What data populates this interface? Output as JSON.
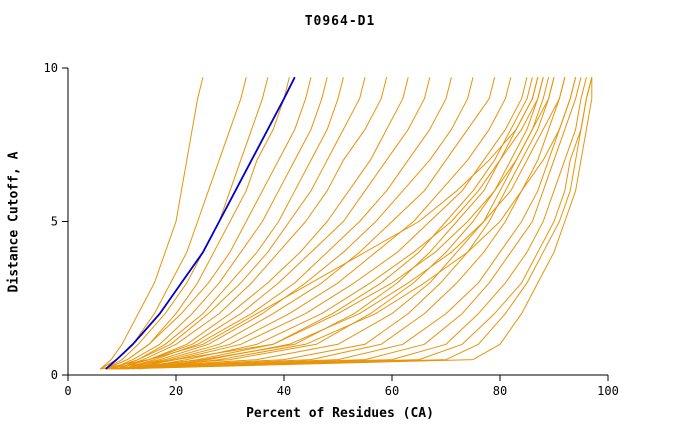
{
  "chart_data": {
    "type": "line",
    "title": "T0964-D1",
    "xlabel": "Percent of Residues (CA)",
    "ylabel": "Distance Cutoff, A",
    "xlim": [
      0,
      100
    ],
    "ylim": [
      0,
      10
    ],
    "x_ticks": [
      0,
      20,
      40,
      60,
      80,
      100
    ],
    "y_ticks": [
      0,
      5,
      10
    ],
    "grid": false,
    "legend": "none",
    "colors": {
      "models": "#e8940a",
      "highlight": "#0000cc",
      "axis": "#000000",
      "background": "#ffffff"
    },
    "y_samples": [
      0.2,
      0.5,
      1,
      2,
      3,
      4,
      5,
      6,
      7,
      8,
      9,
      9.7
    ],
    "model_series_x": [
      [
        6,
        8,
        10,
        13,
        16,
        18,
        20,
        21,
        22,
        23,
        24,
        25
      ],
      [
        6,
        9,
        12,
        16,
        19,
        22,
        24,
        26,
        28,
        30,
        32,
        33
      ],
      [
        7,
        10,
        13,
        18,
        22,
        25,
        28,
        30,
        32,
        34,
        36,
        37
      ],
      [
        7,
        11,
        15,
        20,
        24,
        27,
        30,
        33,
        35,
        38,
        40,
        41
      ],
      [
        7,
        11,
        15,
        21,
        26,
        30,
        33,
        36,
        39,
        42,
        44,
        45
      ],
      [
        8,
        12,
        17,
        23,
        28,
        32,
        36,
        39,
        42,
        45,
        47,
        48
      ],
      [
        8,
        13,
        18,
        25,
        30,
        35,
        39,
        42,
        45,
        48,
        50,
        51
      ],
      [
        8,
        13,
        19,
        26,
        32,
        37,
        41,
        45,
        48,
        51,
        54,
        55
      ],
      [
        9,
        14,
        20,
        28,
        34,
        39,
        44,
        48,
        51,
        55,
        58,
        59
      ],
      [
        9,
        15,
        22,
        30,
        37,
        43,
        48,
        52,
        56,
        59,
        62,
        63
      ],
      [
        9,
        15,
        23,
        32,
        39,
        45,
        51,
        55,
        59,
        63,
        66,
        67
      ],
      [
        10,
        16,
        24,
        34,
        42,
        48,
        54,
        59,
        63,
        67,
        70,
        71
      ],
      [
        10,
        17,
        26,
        36,
        44,
        51,
        57,
        62,
        67,
        71,
        74,
        75
      ],
      [
        10,
        18,
        28,
        38,
        47,
        54,
        60,
        66,
        70,
        74,
        78,
        79
      ],
      [
        11,
        19,
        30,
        41,
        50,
        57,
        64,
        69,
        74,
        78,
        81,
        82
      ],
      [
        11,
        20,
        32,
        44,
        53,
        61,
        67,
        73,
        77,
        81,
        84,
        85
      ],
      [
        12,
        22,
        35,
        47,
        56,
        64,
        71,
        76,
        80,
        84,
        87,
        88
      ],
      [
        12,
        24,
        38,
        50,
        60,
        68,
        74,
        79,
        83,
        86,
        89,
        90
      ],
      [
        13,
        26,
        41,
        54,
        63,
        71,
        77,
        82,
        85,
        88,
        91,
        92
      ],
      [
        13,
        28,
        44,
        57,
        66,
        74,
        80,
        84,
        88,
        91,
        93,
        94
      ],
      [
        7,
        40,
        55,
        63,
        69,
        74,
        78,
        81,
        84,
        87,
        89,
        90
      ],
      [
        7,
        45,
        58,
        66,
        72,
        77,
        81,
        84,
        87,
        89,
        91,
        92
      ],
      [
        8,
        50,
        62,
        70,
        76,
        80,
        84,
        87,
        89,
        91,
        93,
        94
      ],
      [
        8,
        55,
        66,
        73,
        78,
        82,
        86,
        88,
        90,
        92,
        94,
        95
      ],
      [
        8,
        60,
        70,
        76,
        81,
        85,
        88,
        90,
        92,
        94,
        95,
        96
      ],
      [
        9,
        65,
        73,
        79,
        84,
        87,
        90,
        92,
        93,
        95,
        96,
        97
      ],
      [
        9,
        70,
        76,
        81,
        85,
        88,
        91,
        93,
        94,
        95,
        96,
        97
      ],
      [
        10,
        75,
        80,
        84,
        87,
        90,
        92,
        94,
        95,
        96,
        97,
        97
      ],
      [
        7,
        35,
        50,
        60,
        67,
        72,
        77,
        80,
        83,
        86,
        88,
        89
      ],
      [
        7,
        30,
        46,
        56,
        64,
        70,
        75,
        79,
        82,
        85,
        87,
        88
      ],
      [
        8,
        25,
        42,
        53,
        61,
        67,
        72,
        77,
        80,
        83,
        86,
        87
      ],
      [
        6,
        20,
        38,
        49,
        58,
        65,
        70,
        75,
        79,
        82,
        85,
        86
      ],
      [
        6,
        15,
        25,
        35,
        45,
        55,
        65,
        72,
        78,
        83,
        86,
        87
      ]
    ],
    "highlight_series_x": [
      7,
      9,
      12,
      17,
      21,
      25,
      28,
      31,
      34,
      37,
      40,
      42
    ]
  }
}
